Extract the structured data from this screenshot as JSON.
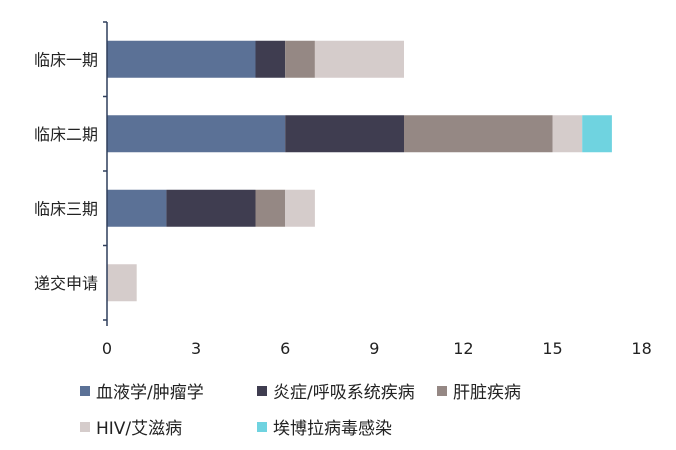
{
  "chart_data": {
    "type": "bar",
    "orientation": "horizontal",
    "stacked": true,
    "categories": [
      "临床一期",
      "临床二期",
      "临床三期",
      "递交申请"
    ],
    "series": [
      {
        "name": "血液学/肿瘤学",
        "color": "#5b7196",
        "values": [
          5,
          6,
          2,
          0
        ]
      },
      {
        "name": "炎症/呼吸系统疾病",
        "color": "#3f3d50",
        "values": [
          1,
          4,
          3,
          0
        ]
      },
      {
        "name": "肝脏疾病",
        "color": "#958884",
        "values": [
          1,
          5,
          1,
          0
        ]
      },
      {
        "name": "HIV/艾滋病",
        "color": "#d5cccb",
        "values": [
          3,
          1,
          1,
          1
        ]
      },
      {
        "name": "埃博拉病毒感染",
        "color": "#6fd3e0",
        "values": [
          0,
          1,
          0,
          0
        ]
      }
    ],
    "xticks": [
      "0",
      "3",
      "6",
      "9",
      "12",
      "15",
      "18"
    ],
    "xlim": [
      0,
      18
    ],
    "grid": false,
    "legend_position": "bottom"
  }
}
